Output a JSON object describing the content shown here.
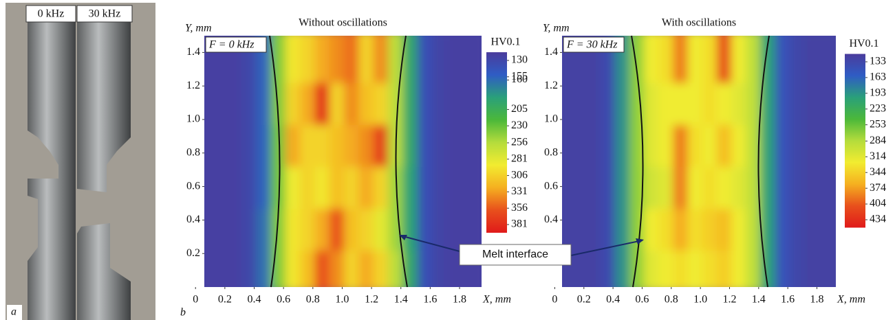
{
  "photo": {
    "labels": [
      "0 kHz",
      "30 kHz"
    ],
    "panel_label": "a"
  },
  "panel_label": "b",
  "annotation": "Melt interface",
  "chart_data": [
    {
      "type": "heatmap",
      "title": "Without oscillations",
      "inset_label": "F = 0 kHz",
      "x_label": "X, mm",
      "y_label": "Y, mm",
      "colorbar_title": "HV0.1",
      "xlim": [
        0.06,
        1.95
      ],
      "ylim": [
        0,
        1.5
      ],
      "xticks": [
        0,
        0.2,
        0.4,
        0.6,
        0.8,
        {
          "value": 1,
          "label": "1.0"
        },
        1.2,
        1.4,
        1.6,
        1.8
      ],
      "yticks": [
        0.2,
        0.4,
        0.6,
        0.8,
        {
          "value": 1,
          "label": "1.0"
        },
        1.2,
        1.4
      ],
      "x": [
        0.1,
        0.2,
        0.3,
        0.4,
        0.5,
        0.6,
        0.7,
        0.8,
        0.9,
        1.0,
        1.1,
        1.2,
        1.3,
        1.4,
        1.5,
        1.6,
        1.7,
        1.8,
        1.9
      ],
      "y": [
        0.125,
        0.375,
        0.625,
        0.875,
        1.125,
        1.375
      ],
      "z": [
        [
          135,
          135,
          135,
          140,
          170,
          240,
          290,
          310,
          350,
          330,
          300,
          320,
          300,
          260,
          200,
          150,
          138,
          135,
          135
        ],
        [
          135,
          135,
          135,
          140,
          170,
          240,
          290,
          300,
          320,
          350,
          310,
          300,
          280,
          250,
          195,
          150,
          138,
          135,
          135
        ],
        [
          135,
          135,
          135,
          140,
          165,
          235,
          285,
          300,
          290,
          310,
          300,
          320,
          300,
          250,
          195,
          150,
          138,
          135,
          135
        ],
        [
          135,
          135,
          135,
          140,
          165,
          235,
          320,
          300,
          300,
          310,
          320,
          330,
          360,
          260,
          200,
          150,
          138,
          135,
          135
        ],
        [
          135,
          135,
          135,
          140,
          165,
          240,
          300,
          320,
          370,
          300,
          330,
          310,
          300,
          260,
          200,
          150,
          138,
          135,
          135
        ],
        [
          135,
          135,
          135,
          140,
          165,
          240,
          290,
          300,
          320,
          330,
          340,
          300,
          330,
          260,
          200,
          150,
          138,
          135,
          135
        ]
      ],
      "clim": [
        130,
        381
      ],
      "cticks": [
        130,
        155,
        160,
        205,
        230,
        256,
        281,
        306,
        331,
        356,
        381
      ],
      "colors": [
        "#4a3c9c",
        "#2f5cc4",
        "#2aa07a",
        "#4bb83a",
        "#b4dc3c",
        "#f2ec30",
        "#f5b020",
        "#e8501c",
        "#e01a1a"
      ]
    },
    {
      "type": "heatmap",
      "title": "With oscillations",
      "inset_label": "F = 30 kHz",
      "x_label": "X, mm",
      "y_label": "Y, mm",
      "colorbar_title": "HV0.1",
      "xlim": [
        0.05,
        1.93
      ],
      "ylim": [
        0,
        1.5
      ],
      "xticks": [
        0,
        0.2,
        0.4,
        0.6,
        0.8,
        {
          "value": 1,
          "label": "1.0"
        },
        1.2,
        1.4,
        1.6,
        1.8
      ],
      "yticks": [
        0.4,
        0.6,
        0.8,
        {
          "value": 1,
          "label": "1.0"
        },
        1.2,
        1.4
      ],
      "x": [
        0.1,
        0.2,
        0.3,
        0.4,
        0.5,
        0.6,
        0.7,
        0.8,
        0.9,
        1.0,
        1.1,
        1.2,
        1.3,
        1.4,
        1.5,
        1.6,
        1.7,
        1.8,
        1.9
      ],
      "y": [
        0.125,
        0.375,
        0.625,
        0.875,
        1.125,
        1.375
      ],
      "z": [
        [
          140,
          140,
          140,
          150,
          200,
          270,
          310,
          320,
          330,
          320,
          330,
          340,
          320,
          290,
          210,
          160,
          145,
          140,
          140
        ],
        [
          140,
          140,
          140,
          150,
          200,
          270,
          320,
          330,
          360,
          330,
          340,
          350,
          320,
          290,
          210,
          160,
          145,
          140,
          140
        ],
        [
          140,
          140,
          140,
          150,
          200,
          270,
          300,
          310,
          380,
          320,
          330,
          320,
          310,
          290,
          210,
          160,
          145,
          140,
          140
        ],
        [
          140,
          140,
          140,
          150,
          200,
          270,
          310,
          320,
          380,
          330,
          320,
          350,
          320,
          290,
          210,
          160,
          145,
          140,
          140
        ],
        [
          140,
          140,
          140,
          150,
          200,
          270,
          310,
          320,
          320,
          320,
          330,
          320,
          310,
          290,
          210,
          160,
          145,
          140,
          140
        ],
        [
          140,
          140,
          140,
          150,
          200,
          270,
          320,
          330,
          380,
          320,
          330,
          400,
          320,
          290,
          210,
          160,
          145,
          140,
          140
        ]
      ],
      "clim": [
        133,
        434
      ],
      "cticks": [
        133,
        163,
        193,
        223,
        253,
        284,
        314,
        344,
        374,
        404,
        434
      ],
      "colors": [
        "#4a3c9c",
        "#2f5cc4",
        "#2aa07a",
        "#4bb83a",
        "#b4dc3c",
        "#f2ec30",
        "#f5b020",
        "#e8501c",
        "#e01a1a"
      ]
    }
  ]
}
